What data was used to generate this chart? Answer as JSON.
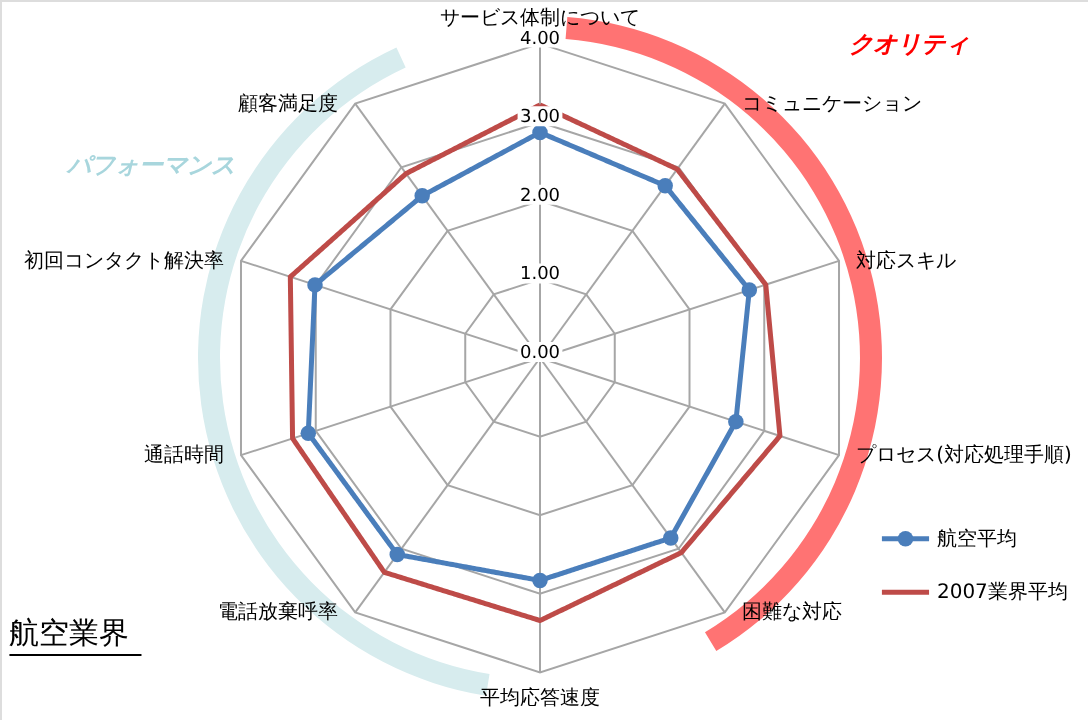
{
  "chart_data": {
    "type": "radar",
    "title": "航空業界",
    "categories": [
      "サービス体制について",
      "コミュニケーション",
      "対応スキル",
      "プロセス(対応処理手順)",
      "困難な対応",
      "平均応答速度",
      "電話放棄呼率",
      "通話時間",
      "初回コンタクト解決率",
      "顧客満足度"
    ],
    "series": [
      {
        "name": "航空平均",
        "color": "#4a7ebb",
        "marker": "circle",
        "values": [
          2.87,
          2.71,
          2.8,
          2.62,
          2.83,
          2.83,
          3.09,
          3.1,
          3.01,
          2.55
        ]
      },
      {
        "name": "2007業界平均",
        "color": "#be4b48",
        "marker": "none",
        "values": [
          3.22,
          2.97,
          3.02,
          3.21,
          3.06,
          3.34,
          3.37,
          3.31,
          3.34,
          2.9
        ]
      }
    ],
    "ylim": [
      0,
      4
    ],
    "yticks": [
      {
        "value": 0,
        "label": "0.00"
      },
      {
        "value": 1,
        "label": "1.00"
      },
      {
        "value": 2,
        "label": "2.00"
      },
      {
        "value": 3,
        "label": "3.00"
      },
      {
        "value": 4,
        "label": "4.00"
      }
    ],
    "grid": true,
    "legend": "bottom right",
    "annotations": [
      "クオリティ",
      "パフォーマンス"
    ]
  }
}
